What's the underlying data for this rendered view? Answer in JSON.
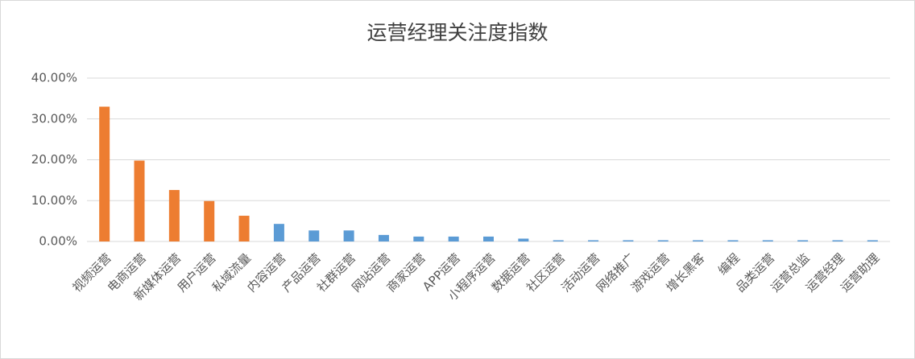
{
  "chart_data": {
    "type": "bar",
    "title": "运营经理关注度指数",
    "categories": [
      "视频运营",
      "电商运营",
      "新媒体运营",
      "用户运营",
      "私域流量",
      "内容运营",
      "产品运营",
      "社群运营",
      "网站运营",
      "商家运营",
      "APP运营",
      "小程序运营",
      "数据运营",
      "社区运营",
      "活动运营",
      "网络推广",
      "游戏运营",
      "增长黑客",
      "编程",
      "品类运营",
      "运营总监",
      "运营经理",
      "运营助理"
    ],
    "values": [
      33,
      19.8,
      12.6,
      9.9,
      6.3,
      4.3,
      2.7,
      2.7,
      1.6,
      1.2,
      1.2,
      1.2,
      0.7,
      0.3,
      0.3,
      0.3,
      0.3,
      0.3,
      0.3,
      0.3,
      0.3,
      0.3,
      0.3
    ],
    "colors": [
      "#ed7d31",
      "#ed7d31",
      "#ed7d31",
      "#ed7d31",
      "#ed7d31",
      "#5b9bd5",
      "#5b9bd5",
      "#5b9bd5",
      "#5b9bd5",
      "#5b9bd5",
      "#5b9bd5",
      "#5b9bd5",
      "#5b9bd5",
      "#5b9bd5",
      "#5b9bd5",
      "#5b9bd5",
      "#5b9bd5",
      "#5b9bd5",
      "#5b9bd5",
      "#5b9bd5",
      "#5b9bd5",
      "#5b9bd5",
      "#5b9bd5"
    ],
    "ylim": [
      0,
      40
    ],
    "yticks": [
      {
        "value": 0,
        "label": "0.00%"
      },
      {
        "value": 10,
        "label": "10.00%"
      },
      {
        "value": 20,
        "label": "20.00%"
      },
      {
        "value": 30,
        "label": "30.00%"
      },
      {
        "value": 40,
        "label": "40.00%"
      }
    ],
    "grid": true
  }
}
